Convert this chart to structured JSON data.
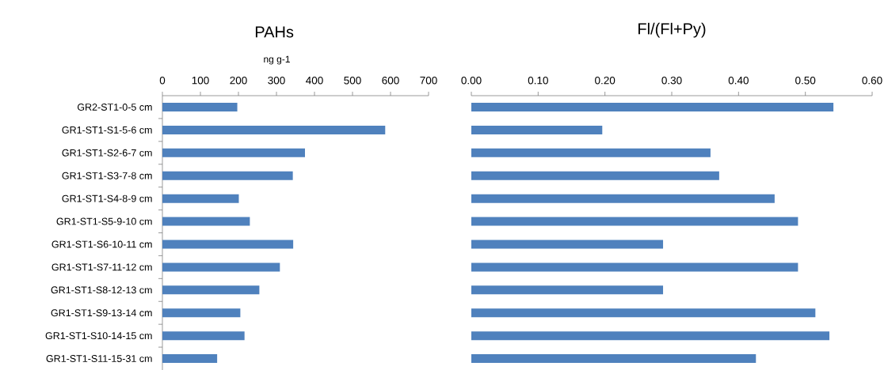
{
  "chart_data": [
    {
      "type": "bar",
      "orientation": "horizontal",
      "title": "PAHs",
      "xlabel": "ng g-1",
      "categories": [
        "GR2-ST1-0-5 cm",
        "GR1-ST1-S1-5-6 cm",
        "GR1-ST1-S2-6-7 cm",
        "GR1-ST1-S3-7-8 cm",
        "GR1-ST1-S4-8-9 cm",
        "GR1-ST1-S5-9-10 cm",
        "GR1-ST1-S6-10-11 cm",
        "GR1-ST1-S7-11-12 cm",
        "GR1-ST1-S8-12-13 cm",
        "GR1-ST1-S9-13-14 cm",
        "GR1-ST1-S10-14-15 cm",
        "GR1-ST1-S11-15-31 cm"
      ],
      "values": [
        197,
        586,
        375,
        343,
        201,
        230,
        344,
        309,
        255,
        205,
        216,
        144
      ],
      "color": "#4f81bd",
      "xlim": [
        0,
        700
      ],
      "xticks": [
        0,
        100,
        200,
        300,
        400,
        500,
        600,
        700
      ]
    },
    {
      "type": "bar",
      "orientation": "horizontal",
      "title": "Fl/(Fl+Py)",
      "categories": [
        null,
        null,
        null,
        null,
        null,
        null,
        null,
        null,
        null,
        null,
        null,
        null
      ],
      "values": [
        0.542,
        0.196,
        0.358,
        0.371,
        0.454,
        0.489,
        0.287,
        0.489,
        0.287,
        0.515,
        0.536,
        0.426
      ],
      "color": "#4f81bd",
      "xlim": [
        0,
        0.6
      ],
      "tick_labels": "x",
      "xticks": [
        {
          "value": 0,
          "label": "0.00"
        },
        {
          "value": 0.1,
          "label": "0.10"
        },
        {
          "value": 0.2,
          "label": "0.20"
        },
        {
          "value": 0.3,
          "label": "0.30"
        },
        {
          "value": 0.4,
          "label": "0.40"
        },
        {
          "value": 0.5,
          "label": "0.50"
        },
        {
          "value": 0.6,
          "label": "0.60"
        }
      ]
    }
  ]
}
